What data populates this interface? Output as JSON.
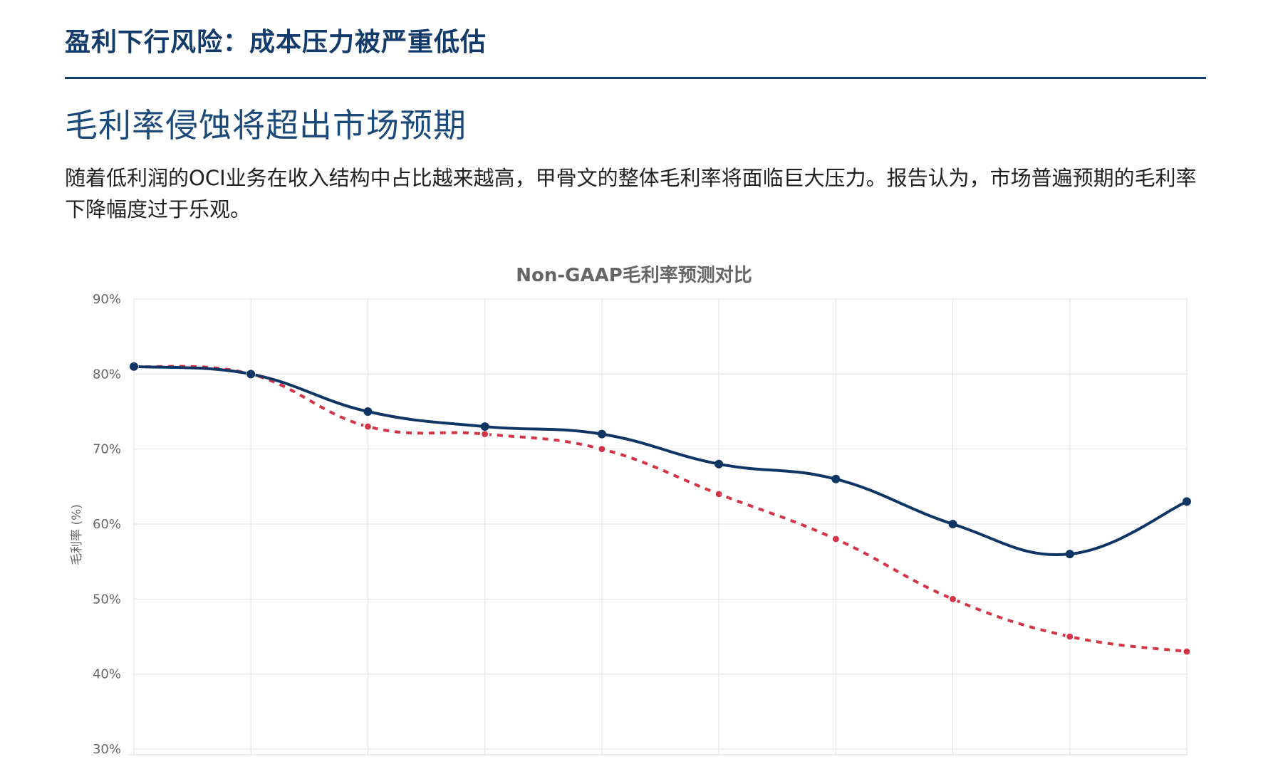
{
  "header": {
    "title": "盈利下行风险：成本压力被严重低估"
  },
  "section": {
    "title": "毛利率侵蚀将超出市场预期",
    "body": "随着低利润的OCI业务在收入结构中占比越来越高，甲骨文的整体毛利率将面临巨大压力。报告认为，市场普遍预期的毛利率下降幅度过于乐观。"
  },
  "chart_data": {
    "type": "line",
    "title": "Non-GAAP毛利率预测对比",
    "ylabel": "毛利率 (%)",
    "xlabel": "",
    "ylim": [
      30,
      90
    ],
    "yticks": [
      "30%",
      "40%",
      "50%",
      "60%",
      "70%",
      "80%",
      "90%"
    ],
    "yticks_values": [
      30,
      40,
      50,
      60,
      70,
      80,
      90
    ],
    "x": [
      0,
      1,
      2,
      3,
      4,
      5,
      6,
      7,
      8,
      9
    ],
    "grid": true,
    "series": [
      {
        "values": [
          81,
          80,
          75,
          73,
          72,
          68,
          66,
          60,
          56,
          63
        ],
        "color": "#0f3564",
        "style": "solid"
      },
      {
        "values": [
          81,
          80,
          73,
          72,
          70,
          64,
          58,
          50,
          45,
          43
        ],
        "color": "#d53447",
        "style": "dashed"
      }
    ]
  }
}
